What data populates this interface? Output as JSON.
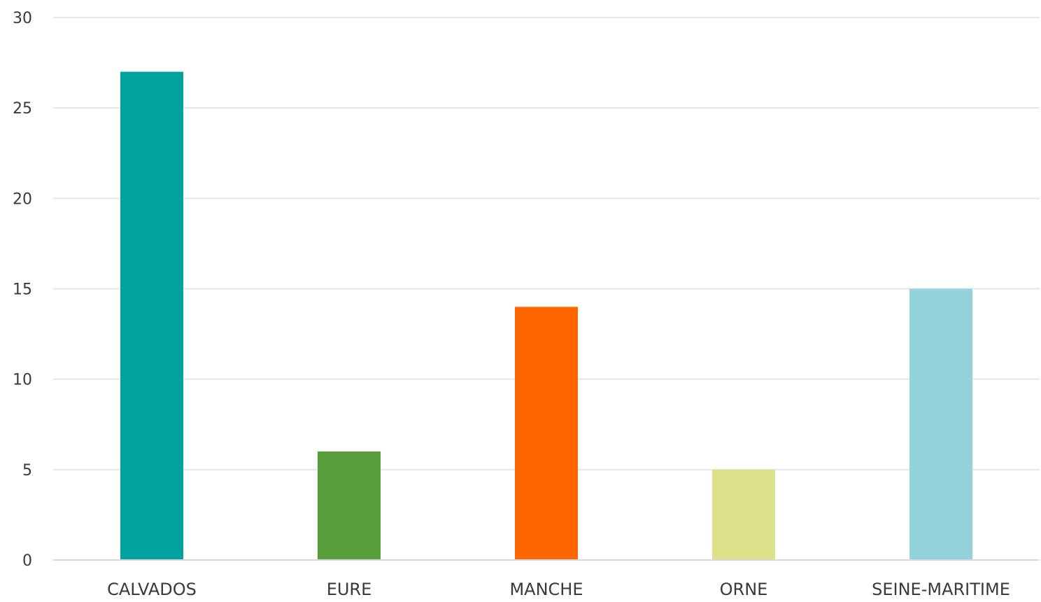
{
  "chart_data": {
    "type": "bar",
    "title": "",
    "xlabel": "",
    "ylabel": "",
    "categories": [
      "CALVADOS",
      "EURE",
      "MANCHE",
      "ORNE",
      "SEINE-MARITIME"
    ],
    "values": [
      27,
      6,
      14,
      5,
      15
    ],
    "colors": [
      "#00A19F",
      "#559E3A",
      "#FF6600",
      "#DCE28C",
      "#94D3DC"
    ],
    "ylim": [
      0,
      30
    ],
    "yticks": [
      0,
      5,
      10,
      15,
      20,
      25,
      30
    ],
    "grid": true,
    "legend": "none"
  }
}
